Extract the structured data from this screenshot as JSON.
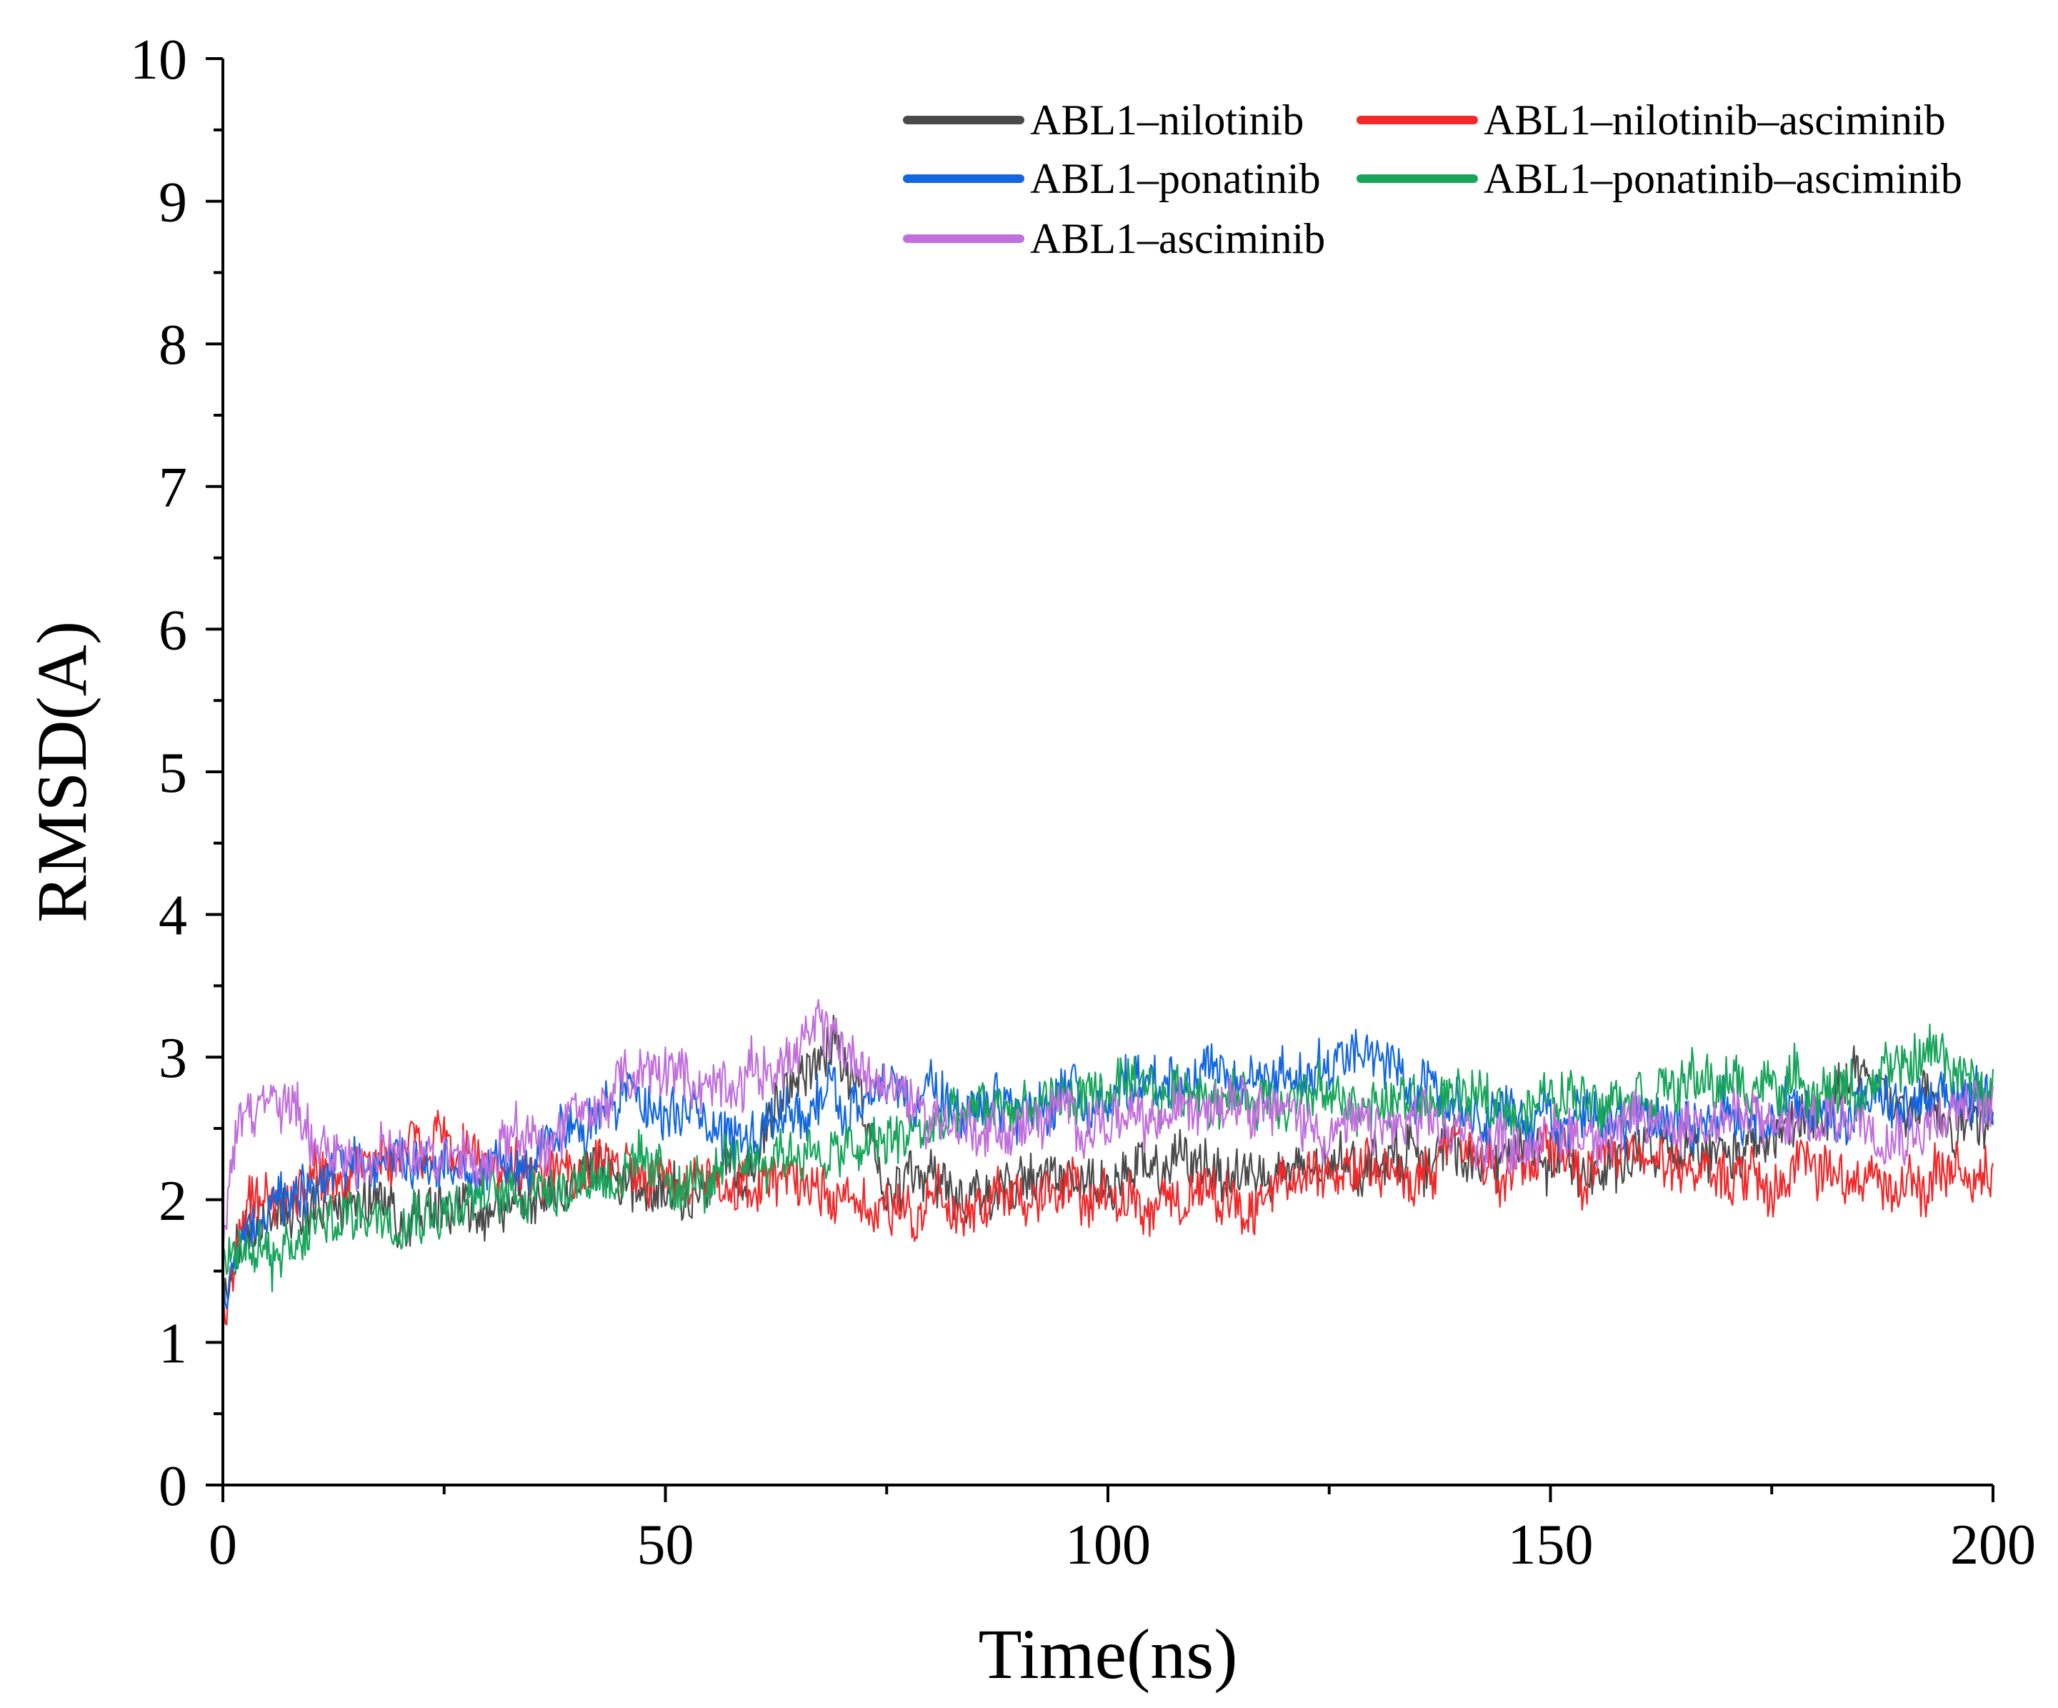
{
  "chart_data": {
    "type": "line",
    "title": "",
    "xlabel": "Time(ns)",
    "ylabel": "RMSD(A)",
    "xlim": [
      0,
      200
    ],
    "ylim": [
      0,
      10
    ],
    "grid": false,
    "legend_position": "top-right",
    "x_ticks": [
      "0",
      "50",
      "100",
      "150",
      "200"
    ],
    "y_ticks": [
      "0",
      "1",
      "2",
      "3",
      "4",
      "5",
      "6",
      "7",
      "8",
      "9",
      "10"
    ],
    "series": [
      {
        "name": "ABL1–nilotinib",
        "color": "#4a4a4a",
        "x": [
          0,
          2,
          5,
          10,
          15,
          20,
          25,
          30,
          35,
          40,
          45,
          50,
          55,
          60,
          63,
          66,
          69,
          72,
          75,
          80,
          85,
          90,
          95,
          100,
          105,
          110,
          115,
          120,
          125,
          130,
          135,
          140,
          145,
          150,
          155,
          160,
          165,
          170,
          175,
          180,
          184,
          188,
          192,
          196,
          200
        ],
        "y": [
          1.2,
          1.7,
          1.9,
          2.0,
          1.95,
          1.9,
          1.9,
          1.9,
          2.0,
          2.1,
          2.1,
          2.05,
          2.1,
          2.2,
          2.7,
          3.0,
          3.1,
          2.7,
          2.2,
          2.1,
          2.05,
          2.15,
          2.1,
          2.1,
          2.2,
          2.25,
          2.2,
          2.15,
          2.2,
          2.3,
          2.35,
          2.3,
          2.3,
          2.3,
          2.25,
          2.3,
          2.3,
          2.3,
          2.4,
          2.6,
          2.9,
          2.7,
          2.6,
          2.5,
          2.6
        ]
      },
      {
        "name": "ABL1–nilotinib–asciminib",
        "color": "#f2282a",
        "x": [
          0,
          2,
          5,
          10,
          15,
          20,
          25,
          30,
          35,
          40,
          45,
          50,
          55,
          60,
          65,
          70,
          75,
          80,
          85,
          90,
          95,
          100,
          105,
          110,
          115,
          120,
          125,
          130,
          135,
          140,
          145,
          150,
          155,
          160,
          165,
          170,
          175,
          180,
          185,
          190,
          195,
          200
        ],
        "y": [
          1.2,
          1.8,
          2.0,
          2.1,
          2.2,
          2.35,
          2.4,
          2.25,
          2.2,
          2.2,
          2.2,
          2.15,
          2.2,
          2.1,
          2.05,
          2.0,
          2.0,
          1.95,
          2.0,
          2.0,
          2.05,
          2.0,
          2.0,
          2.1,
          2.0,
          2.1,
          2.15,
          2.2,
          2.3,
          2.3,
          2.25,
          2.25,
          2.2,
          2.25,
          2.3,
          2.15,
          2.1,
          2.2,
          2.2,
          2.1,
          2.15,
          2.15
        ]
      },
      {
        "name": "ABL1–ponatinib",
        "color": "#1266e0",
        "x": [
          0,
          1,
          3,
          5,
          10,
          15,
          20,
          25,
          30,
          35,
          40,
          45,
          50,
          55,
          60,
          65,
          70,
          75,
          80,
          85,
          90,
          95,
          100,
          105,
          110,
          115,
          120,
          125,
          130,
          135,
          140,
          145,
          150,
          155,
          160,
          165,
          170,
          175,
          180,
          185,
          190,
          195,
          200
        ],
        "y": [
          1.3,
          1.5,
          1.8,
          1.9,
          2.1,
          2.2,
          2.3,
          2.2,
          2.2,
          2.3,
          2.5,
          2.8,
          2.6,
          2.5,
          2.5,
          2.6,
          2.7,
          2.75,
          2.8,
          2.6,
          2.6,
          2.7,
          2.7,
          2.75,
          2.85,
          2.8,
          2.9,
          2.9,
          3.0,
          2.85,
          2.7,
          2.6,
          2.6,
          2.6,
          2.6,
          2.55,
          2.6,
          2.6,
          2.6,
          2.65,
          2.6,
          2.7,
          2.75
        ]
      },
      {
        "name": "ABL1–ponatinib–asciminib",
        "color": "#17a55a",
        "x": [
          0,
          2,
          5,
          8,
          10,
          15,
          20,
          25,
          30,
          35,
          40,
          45,
          50,
          55,
          60,
          65,
          70,
          75,
          80,
          85,
          90,
          95,
          100,
          105,
          110,
          115,
          120,
          125,
          130,
          135,
          140,
          145,
          150,
          155,
          160,
          165,
          170,
          175,
          180,
          185,
          190,
          194,
          197,
          200
        ],
        "y": [
          1.5,
          1.7,
          1.65,
          1.6,
          1.8,
          1.9,
          1.95,
          1.95,
          2.0,
          2.1,
          2.15,
          2.2,
          2.15,
          2.1,
          2.3,
          2.35,
          2.3,
          2.4,
          2.5,
          2.6,
          2.65,
          2.7,
          2.75,
          2.7,
          2.8,
          2.7,
          2.75,
          2.7,
          2.65,
          2.7,
          2.7,
          2.65,
          2.7,
          2.75,
          2.8,
          2.8,
          2.8,
          2.8,
          2.8,
          2.75,
          2.9,
          3.1,
          2.8,
          2.7
        ]
      },
      {
        "name": "ABL1–asciminib",
        "color": "#c06fdc",
        "x": [
          0,
          1,
          2,
          4,
          6,
          8,
          10,
          15,
          20,
          25,
          30,
          35,
          40,
          45,
          50,
          55,
          60,
          65,
          68,
          70,
          72,
          75,
          80,
          85,
          90,
          95,
          100,
          105,
          110,
          115,
          120,
          125,
          130,
          135,
          140,
          145,
          150,
          155,
          160,
          165,
          170,
          175,
          180,
          185,
          190,
          195,
          200
        ],
        "y": [
          1.6,
          2.3,
          2.6,
          2.7,
          2.65,
          2.6,
          2.4,
          2.3,
          2.3,
          2.25,
          2.3,
          2.4,
          2.5,
          2.8,
          2.9,
          2.8,
          2.9,
          3.0,
          3.2,
          3.1,
          2.9,
          2.8,
          2.6,
          2.5,
          2.5,
          2.6,
          2.55,
          2.5,
          2.7,
          2.8,
          2.6,
          2.5,
          2.5,
          2.5,
          2.45,
          2.4,
          2.45,
          2.5,
          2.5,
          2.55,
          2.6,
          2.5,
          2.55,
          2.6,
          2.5,
          2.6,
          2.65
        ]
      }
    ]
  }
}
